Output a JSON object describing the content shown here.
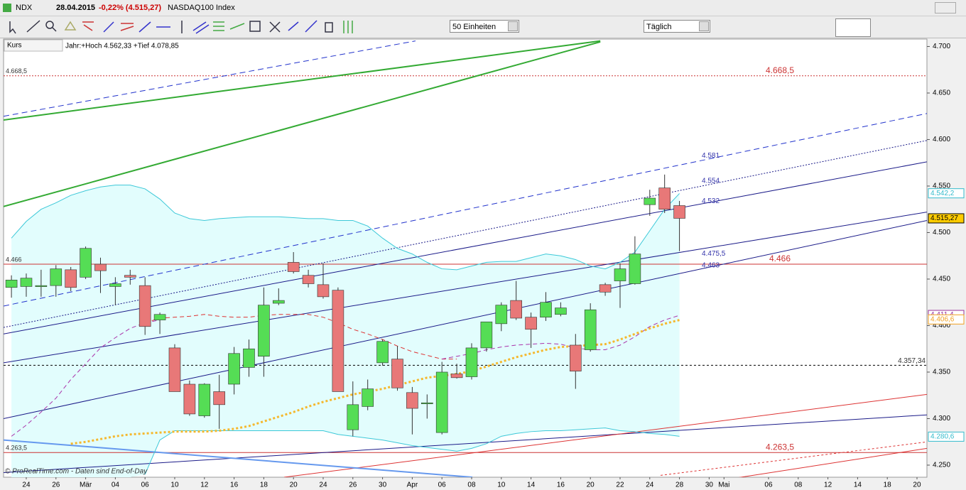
{
  "window": {
    "symbol": "NDX",
    "date": "28.04.2015",
    "change": "-0,22% (4.515,27)",
    "name": "NASDAQ100 Index",
    "units": "50 Einheiten",
    "interval": "Täglich",
    "panel": "Kurs",
    "range_info": "Jahr:+Hoch 4.562,33 +Tief 4.078,85",
    "footer": "© ProRealTime.com - Daten sind End-of-Day"
  },
  "chart_data": {
    "type": "candlestick",
    "categories": [
      null,
      "24",
      null,
      "26",
      null,
      "Mär",
      null,
      "04",
      null,
      "06",
      null,
      "10",
      null,
      "12",
      null,
      "16",
      null,
      "18",
      null,
      "20",
      null,
      "24",
      null,
      "26",
      null,
      "30",
      null,
      "Apr",
      null,
      "06",
      null,
      "08",
      null,
      "10",
      null,
      "14",
      null,
      "16",
      null,
      "20",
      null,
      "22",
      null,
      "24",
      null,
      "28",
      null,
      "30",
      "Mai",
      null,
      null,
      "06",
      null,
      "08",
      null,
      "12",
      null,
      "14",
      null,
      "18",
      null,
      "20"
    ],
    "open": [
      4441,
      4442,
      4442,
      4443,
      4460,
      4452,
      4466,
      4442,
      4454,
      4443,
      4406,
      4376,
      4337,
      4303,
      4329,
      4337,
      4355,
      4367,
      4424,
      4468,
      4454,
      4444,
      4438,
      4288,
      4313,
      4360,
      4364,
      4328,
      4316,
      4285,
      4348,
      4345,
      4376,
      4402,
      4427,
      4409,
      4409,
      4412,
      4379,
      4374,
      4444,
      4448,
      4445,
      4530,
      4548,
      4529,
      null,
      null,
      null,
      null,
      null,
      null,
      null,
      null,
      null,
      null,
      null,
      null,
      null,
      null,
      null,
      null
    ],
    "high": [
      4454,
      4456,
      4460,
      4465,
      4463,
      4485,
      4473,
      4452,
      4460,
      4452,
      4414,
      4380,
      4341,
      4338,
      4347,
      4377,
      4385,
      4441,
      4440,
      4479,
      4460,
      4467,
      4441,
      4340,
      4342,
      4385,
      4378,
      4334,
      4326,
      4361,
      4359,
      4381,
      4404,
      4425,
      4448,
      4414,
      4436,
      4425,
      4391,
      4424,
      4446,
      4467,
      4496,
      4546,
      4562.33,
      4534,
      null,
      null,
      null,
      null,
      null,
      null,
      null,
      null,
      null,
      null,
      null,
      null,
      null,
      null,
      null,
      null
    ],
    "low": [
      4430,
      4431,
      4431,
      4431,
      4437,
      4450,
      4435,
      4422,
      4444,
      4390,
      4391,
      4329,
      4303,
      4301,
      4289,
      4326,
      4345,
      4345,
      4422,
      4456,
      4441,
      4429,
      4329,
      4281,
      4309,
      4357,
      4330,
      4283,
      4300,
      4283,
      4343,
      4342,
      4372,
      4394,
      4406,
      4376,
      4405,
      4410,
      4332,
      4372,
      4432,
      4419,
      4444,
      4518,
      4521,
      4480,
      null,
      null,
      null,
      null,
      null,
      null,
      null,
      null,
      null,
      null,
      null,
      null,
      null,
      null,
      null,
      null
    ],
    "close": [
      4449,
      4451,
      4443,
      4461,
      4441,
      4483,
      4459,
      4445,
      4452,
      4399,
      4412,
      4329,
      4305,
      4337,
      4315,
      4370,
      4375,
      4422,
      4427,
      4458,
      4445,
      4431,
      4329,
      4315,
      4332,
      4383,
      4333,
      4311,
      4317,
      4350,
      4344,
      4376,
      4404,
      4422,
      4408,
      4396,
      4425,
      4419,
      4351,
      4417,
      4436,
      4461,
      4477,
      4537,
      4525,
      4515.27,
      null,
      null,
      null,
      null,
      null,
      null,
      null,
      null,
      null,
      null,
      null,
      null,
      null,
      null,
      null,
      null
    ],
    "up_color": "#55dd55",
    "down_color": "#e87878",
    "candle_outline": "#333333",
    "band_fill": "#e2fdfd",
    "overlays": [
      {
        "color": "#3cc8d8",
        "dash": "solid",
        "width": 1,
        "values": [
          4494,
          4512,
          4525,
          4532,
          4540,
          4545,
          4549,
          4551,
          4551,
          4547,
          4536,
          4521,
          4515,
          4513,
          4515,
          4516,
          4517,
          4517,
          4517,
          4516,
          4515,
          4515,
          4513,
          4513,
          4507,
          4494,
          4483,
          4477,
          4468,
          4461,
          4460,
          4464,
          4468,
          4469,
          4469,
          4473,
          4477,
          4475,
          4471,
          4464,
          4461,
          4468,
          4479,
          4502,
          4525,
          4542,
          null,
          null,
          null,
          null,
          null,
          null,
          null,
          null,
          null,
          null,
          null,
          null,
          null,
          null,
          null,
          null
        ]
      },
      {
        "color": "#3cc8d8",
        "dash": "solid",
        "width": 1,
        "values": [
          null,
          null,
          null,
          null,
          null,
          null,
          null,
          null,
          null,
          4240,
          4277,
          4287,
          4287,
          4287,
          4287,
          4287,
          4287,
          4287,
          4287,
          4287,
          4287,
          4287,
          4283,
          4281,
          4279,
          4277,
          4274,
          4271,
          4269,
          4267,
          4265,
          4268,
          4273,
          4281,
          4284,
          4286,
          4287,
          4287,
          4288,
          4289,
          4290,
          4287,
          4286,
          4284,
          4283,
          4281,
          null,
          null,
          null,
          null,
          null,
          null,
          null,
          null,
          null,
          null,
          null,
          null,
          null,
          null,
          null,
          null
        ]
      },
      {
        "color": "#dd3333",
        "dash": "6,4",
        "width": 1,
        "values": [
          null,
          null,
          null,
          null,
          null,
          null,
          null,
          null,
          null,
          4403,
          4408,
          4409,
          4410,
          4412,
          4410,
          4409,
          4409,
          4411,
          4412,
          4412,
          4412,
          4409,
          4403,
          4396,
          4391,
          4385,
          4378,
          4372,
          4368,
          4364,
          4364,
          null,
          null,
          null,
          null,
          null,
          null,
          null,
          null,
          null,
          null,
          null,
          null,
          null,
          null,
          null,
          null,
          null,
          null,
          null,
          null,
          null,
          null,
          null,
          null,
          null,
          null,
          null,
          null,
          null,
          null,
          null
        ]
      },
      {
        "color": "#aa33aa",
        "dash": "6,4",
        "width": 1,
        "values": [
          4281,
          4293,
          4307,
          4322,
          4342,
          4359,
          4376,
          4387,
          4397,
          4403,
          4406,
          null,
          null,
          null,
          null,
          null,
          null,
          null,
          null,
          null,
          null,
          null,
          null,
          null,
          null,
          null,
          null,
          null,
          null,
          4364,
          4367,
          4370,
          4374,
          4377,
          4379,
          4380,
          4381,
          4380,
          4376,
          4374,
          4374,
          4379,
          4388,
          4399,
          4406,
          4411,
          null,
          null,
          null,
          null,
          null,
          null,
          null,
          null,
          null,
          null,
          null,
          null,
          null,
          null,
          null,
          null
        ]
      },
      {
        "color": "#f5b82e",
        "dash": "3,3",
        "width": 3,
        "values": [
          null,
          null,
          null,
          null,
          4273,
          4275,
          4278,
          4281,
          4283,
          4284,
          4285,
          4286,
          4286,
          4286,
          4287,
          4289,
          4292,
          4297,
          4302,
          4307,
          4313,
          4318,
          4322,
          4326,
          4329,
          4332,
          4336,
          4340,
          4344,
          4346,
          4348,
          4351,
          4356,
          4361,
          4366,
          4370,
          4374,
          4377,
          4378,
          4379,
          4380,
          4385,
          4391,
          4397,
          4402,
          4406,
          null,
          null,
          null,
          null,
          null,
          null,
          null,
          null,
          null,
          null,
          null,
          null,
          null,
          null,
          null,
          null
        ]
      }
    ],
    "trendlines": [
      {
        "color": "#33aa33",
        "dash": "solid",
        "width": 2,
        "x": [
          -0.53,
          39.67
        ],
        "values": [
          4621,
          4706
        ]
      },
      {
        "color": "#33aa33",
        "dash": "solid",
        "width": 2,
        "x": [
          -0.53,
          39.67
        ],
        "values": [
          4528,
          4705
        ]
      },
      {
        "color": "#2233cc",
        "dash": "8,5",
        "width": 1,
        "x": [
          -0.53,
          27.22
        ],
        "values": [
          4625,
          4706
        ]
      },
      {
        "color": "#2233cc",
        "dash": "8,5",
        "width": 1,
        "x": [
          -0.53,
          61.67
        ],
        "values": [
          4421,
          4628
        ]
      },
      {
        "color": "#1a1a88",
        "dash": "2,2",
        "width": 1,
        "x": [
          -0.53,
          61.67
        ],
        "values": [
          4398,
          4599
        ]
      },
      {
        "color": "#1a1a88",
        "dash": "solid",
        "width": 1,
        "x": [
          -0.53,
          61.67
        ],
        "values": [
          4391,
          4576
        ]
      },
      {
        "color": "#1a1a88",
        "dash": "solid",
        "width": 1,
        "x": [
          -0.53,
          61.67
        ],
        "values": [
          4360,
          4522
        ]
      },
      {
        "color": "#1a1a88",
        "dash": "solid",
        "width": 1,
        "x": [
          -0.53,
          61.67
        ],
        "values": [
          4300,
          4513
        ]
      },
      {
        "color": "#1a1a88",
        "dash": "solid",
        "width": 1,
        "x": [
          -0.53,
          61.67
        ],
        "values": [
          4242,
          4304
        ]
      },
      {
        "color": "#dd3333",
        "dash": "solid",
        "width": 1,
        "x": [
          18.37,
          61.67
        ],
        "values": [
          4237,
          4326
        ]
      },
      {
        "color": "#dd3333",
        "dash": "solid",
        "width": 1,
        "x": [
          44.69,
          61.67
        ],
        "values": [
          4226,
          4268
        ]
      },
      {
        "color": "#dd3333",
        "dash": "3,3",
        "width": 1,
        "x": [
          43.73,
          61.67
        ],
        "values": [
          4239,
          4275
        ]
      },
      {
        "color": "#6699ee",
        "dash": "solid",
        "width": 2,
        "x": [
          -0.53,
          31.05
        ],
        "values": [
          4277,
          4237
        ]
      }
    ],
    "hlines": [
      {
        "value": 4668.5,
        "label": "4.668,5",
        "color": "#cc3333",
        "dash": "2,2",
        "label_pos": [
          "left",
          "center"
        ]
      },
      {
        "value": 4466,
        "label": "4.466",
        "color": "#cc3333",
        "dash": "solid",
        "label_pos": [
          "left",
          "center"
        ]
      },
      {
        "value": 4357.34,
        "label": "4.357,34",
        "color": "#000000",
        "dash": "3,3",
        "label_pos": [
          "right"
        ]
      },
      {
        "value": 4263.5,
        "label": "4.263,5",
        "color": "#cc3333",
        "dash": "solid",
        "label_pos": [
          "left",
          "center"
        ]
      }
    ],
    "line_labels": [
      {
        "value": 4581,
        "label": "4.581"
      },
      {
        "value": 4554,
        "label": "4.554"
      },
      {
        "value": 4532,
        "label": "4.532"
      },
      {
        "value": 4475.5,
        "label": "4.475,5"
      },
      {
        "value": 4463,
        "label": "4.463"
      }
    ],
    "axis_tags": [
      {
        "value": 4542.2,
        "label": "4.542,2",
        "color": "#33bbcc",
        "background": "#ffffff"
      },
      {
        "value": 4515.27,
        "label": "4.515,27",
        "color": "#000000",
        "background": "#ffcc00"
      },
      {
        "value": 4411.4,
        "label": "4.411,4",
        "color": "#993399",
        "background": "#ffffff"
      },
      {
        "value": 4406.6,
        "label": "4.406,6",
        "color": "#f0a020",
        "background": "#ffffff"
      },
      {
        "value": 4280.6,
        "label": "4.280,6",
        "color": "#33bbcc",
        "background": "#ffffff"
      }
    ],
    "xlim": [
      -0.53,
      61.67
    ],
    "ylim": [
      4237,
      4708
    ],
    "yticks": [
      {
        "value": 4250,
        "label": "4.250"
      },
      {
        "value": 4300,
        "label": "4.300"
      },
      {
        "value": 4350,
        "label": "4.350"
      },
      {
        "value": 4400,
        "label": "4.400"
      },
      {
        "value": 4450,
        "label": "4.450"
      },
      {
        "value": 4500,
        "label": "4.500"
      },
      {
        "value": 4550,
        "label": "4.550"
      },
      {
        "value": 4600,
        "label": "4.600"
      },
      {
        "value": 4650,
        "label": "4.650"
      },
      {
        "value": 4700,
        "label": "4.700"
      }
    ]
  }
}
